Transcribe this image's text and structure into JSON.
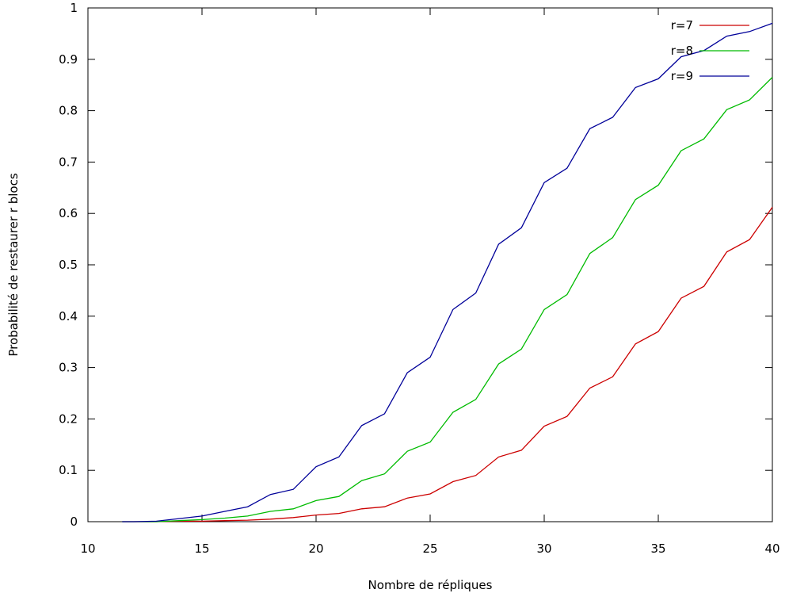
{
  "chart_data": {
    "type": "line",
    "title": "",
    "xlabel": "Nombre de répliques",
    "ylabel": "Probabilité de restaurer r blocs",
    "xlim": [
      10,
      40
    ],
    "ylim": [
      0,
      1
    ],
    "xticks": [
      10,
      15,
      20,
      25,
      30,
      35,
      40
    ],
    "yticks": [
      0,
      0.1,
      0.2,
      0.3,
      0.4,
      0.5,
      0.6,
      0.7,
      0.8,
      0.9,
      1
    ],
    "grid": false,
    "legend_position": "top-right",
    "x": [
      11.5,
      12,
      13,
      14,
      15,
      16,
      17,
      18,
      19,
      20,
      21,
      22,
      23,
      24,
      25,
      26,
      27,
      28,
      29,
      30,
      31,
      32,
      33,
      34,
      35,
      36,
      37,
      38,
      39,
      40
    ],
    "series": [
      {
        "name": "r=7",
        "color": "#cc0000",
        "values": [
          0,
          0,
          0,
          0.001,
          0.001,
          0.002,
          0.003,
          0.005,
          0.008,
          0.013,
          0.016,
          0.025,
          0.029,
          0.046,
          0.054,
          0.078,
          0.09,
          0.126,
          0.139,
          0.186,
          0.205,
          0.26,
          0.282,
          0.346,
          0.37,
          0.435,
          0.458,
          0.525,
          0.549,
          0.612
        ]
      },
      {
        "name": "r=8",
        "color": "#00bb00",
        "values": [
          0,
          0,
          0,
          0.002,
          0.004,
          0.007,
          0.011,
          0.02,
          0.025,
          0.041,
          0.049,
          0.08,
          0.093,
          0.137,
          0.155,
          0.213,
          0.238,
          0.307,
          0.336,
          0.413,
          0.442,
          0.522,
          0.553,
          0.627,
          0.655,
          0.722,
          0.745,
          0.802,
          0.821,
          0.865
        ]
      },
      {
        "name": "r=9",
        "color": "#000099",
        "values": [
          0,
          0,
          0.001,
          0.006,
          0.011,
          0.02,
          0.029,
          0.053,
          0.063,
          0.107,
          0.126,
          0.187,
          0.21,
          0.29,
          0.32,
          0.413,
          0.445,
          0.54,
          0.572,
          0.66,
          0.688,
          0.765,
          0.787,
          0.845,
          0.862,
          0.905,
          0.917,
          0.945,
          0.954,
          0.97
        ]
      }
    ]
  }
}
